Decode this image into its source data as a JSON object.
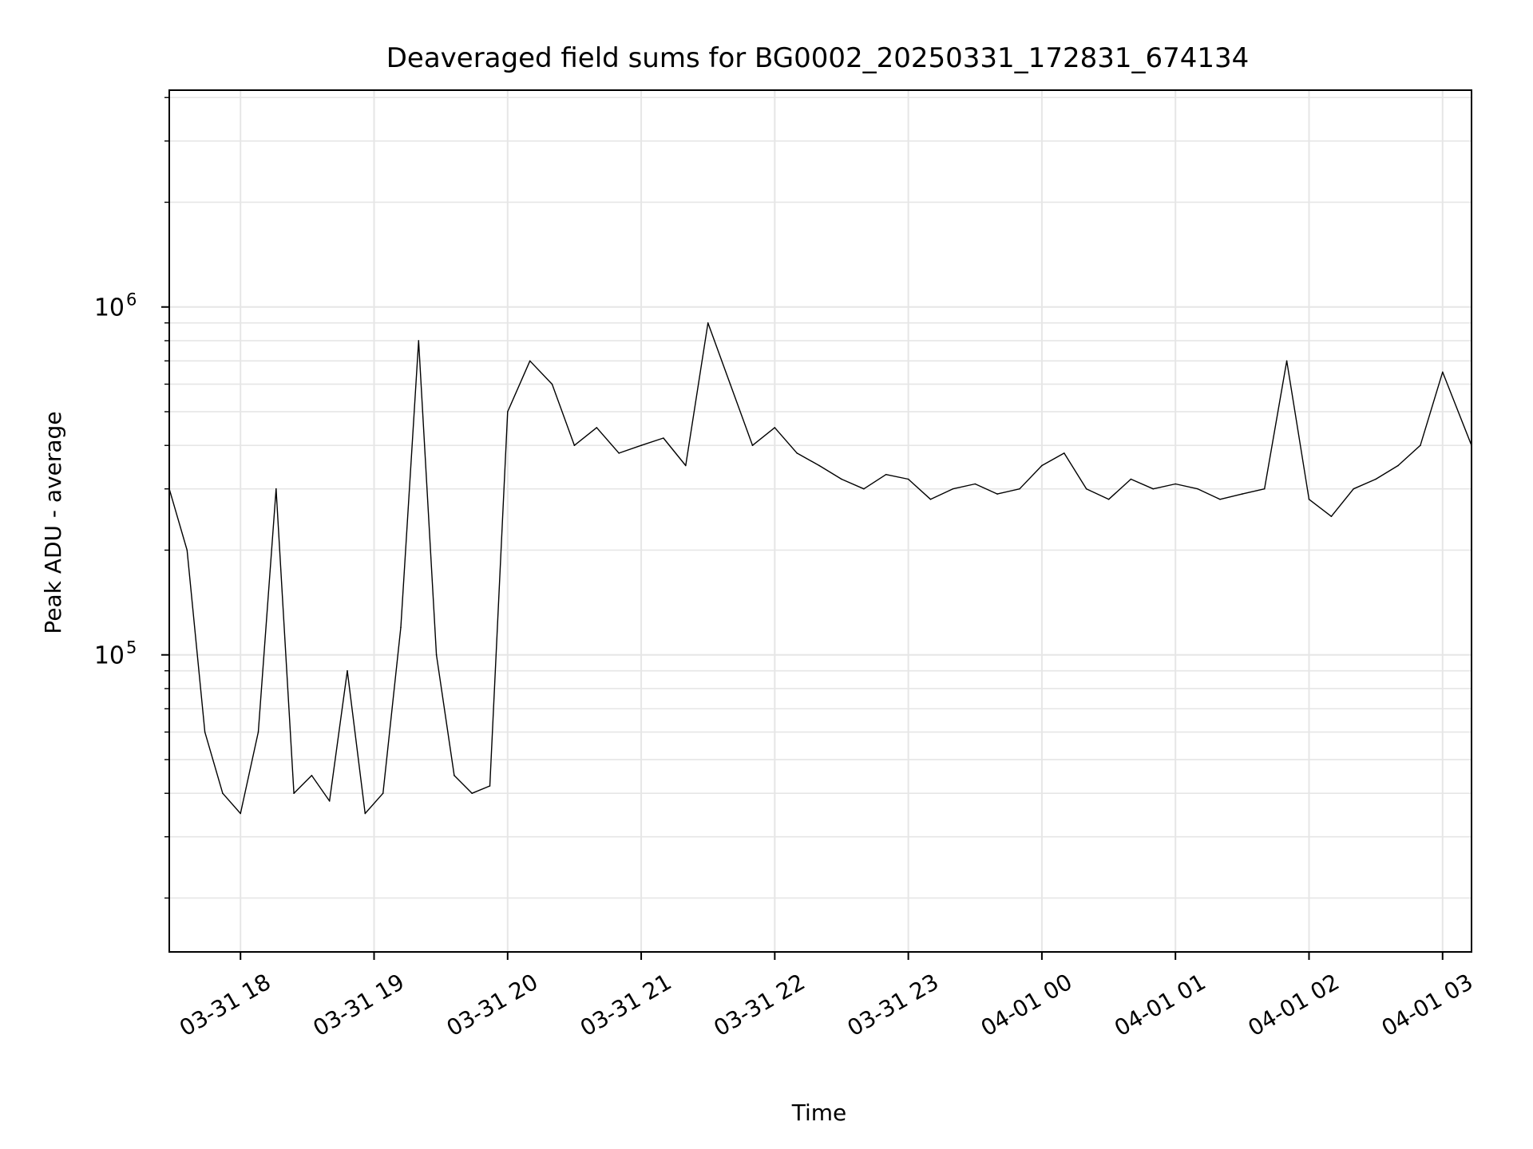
{
  "chart_data": {
    "type": "line",
    "title": "Deaveraged field sums for BG0002_20250331_172831_674134",
    "xlabel": "Time",
    "ylabel": "Peak ADU - average",
    "yscale": "log",
    "ylim": [
      14000,
      4200000
    ],
    "xlim": [
      "2025-03-31 17:28",
      "2025-04-01 03:13"
    ],
    "grid": true,
    "line_color": "#000000",
    "grid_color": "#e6e6e6",
    "x_ticks": [
      {
        "t": "2025-03-31 18:00",
        "label": "03-31 18"
      },
      {
        "t": "2025-03-31 19:00",
        "label": "03-31 19"
      },
      {
        "t": "2025-03-31 20:00",
        "label": "03-31 20"
      },
      {
        "t": "2025-03-31 21:00",
        "label": "03-31 21"
      },
      {
        "t": "2025-03-31 22:00",
        "label": "03-31 22"
      },
      {
        "t": "2025-03-31 23:00",
        "label": "03-31 23"
      },
      {
        "t": "2025-04-01 00:00",
        "label": "04-01 00"
      },
      {
        "t": "2025-04-01 01:00",
        "label": "04-01 01"
      },
      {
        "t": "2025-04-01 02:00",
        "label": "04-01 02"
      },
      {
        "t": "2025-04-01 03:00",
        "label": "04-01 03"
      }
    ],
    "y_ticks": [
      {
        "value": 100000,
        "base": "10",
        "exp": "5"
      },
      {
        "value": 1000000,
        "base": "10",
        "exp": "6"
      }
    ],
    "series": [
      {
        "x": [
          "2025-03-31 17:28",
          "2025-03-31 17:36",
          "2025-03-31 17:44",
          "2025-03-31 17:52",
          "2025-03-31 18:00",
          "2025-03-31 18:08",
          "2025-03-31 18:16",
          "2025-03-31 18:24",
          "2025-03-31 18:32",
          "2025-03-31 18:40",
          "2025-03-31 18:48",
          "2025-03-31 18:56",
          "2025-03-31 19:04",
          "2025-03-31 19:12",
          "2025-03-31 19:20",
          "2025-03-31 19:28",
          "2025-03-31 19:36",
          "2025-03-31 19:44",
          "2025-03-31 19:52",
          "2025-03-31 20:00",
          "2025-03-31 20:10",
          "2025-03-31 20:20",
          "2025-03-31 20:30",
          "2025-03-31 20:40",
          "2025-03-31 20:50",
          "2025-03-31 21:00",
          "2025-03-31 21:10",
          "2025-03-31 21:20",
          "2025-03-31 21:30",
          "2025-03-31 21:40",
          "2025-03-31 21:50",
          "2025-03-31 22:00",
          "2025-03-31 22:10",
          "2025-03-31 22:20",
          "2025-03-31 22:30",
          "2025-03-31 22:40",
          "2025-03-31 22:50",
          "2025-03-31 23:00",
          "2025-03-31 23:10",
          "2025-03-31 23:20",
          "2025-03-31 23:30",
          "2025-03-31 23:40",
          "2025-03-31 23:50",
          "2025-04-01 00:00",
          "2025-04-01 00:10",
          "2025-04-01 00:20",
          "2025-04-01 00:30",
          "2025-04-01 00:40",
          "2025-04-01 00:50",
          "2025-04-01 01:00",
          "2025-04-01 01:10",
          "2025-04-01 01:20",
          "2025-04-01 01:30",
          "2025-04-01 01:40",
          "2025-04-01 01:50",
          "2025-04-01 02:00",
          "2025-04-01 02:10",
          "2025-04-01 02:20",
          "2025-04-01 02:30",
          "2025-04-01 02:40",
          "2025-04-01 02:50",
          "2025-04-01 03:00",
          "2025-04-01 03:13"
        ],
        "y": [
          300000,
          200000,
          60000,
          40000,
          35000,
          60000,
          300000,
          40000,
          45000,
          38000,
          90000,
          35000,
          40000,
          120000,
          800000,
          100000,
          45000,
          40000,
          42000,
          500000,
          700000,
          600000,
          400000,
          450000,
          380000,
          400000,
          420000,
          350000,
          900000,
          600000,
          400000,
          450000,
          380000,
          350000,
          320000,
          300000,
          330000,
          320000,
          280000,
          300000,
          310000,
          290000,
          300000,
          350000,
          380000,
          300000,
          280000,
          320000,
          300000,
          310000,
          300000,
          280000,
          290000,
          300000,
          700000,
          280000,
          250000,
          300000,
          320000,
          350000,
          400000,
          650000,
          400000
        ]
      }
    ]
  }
}
